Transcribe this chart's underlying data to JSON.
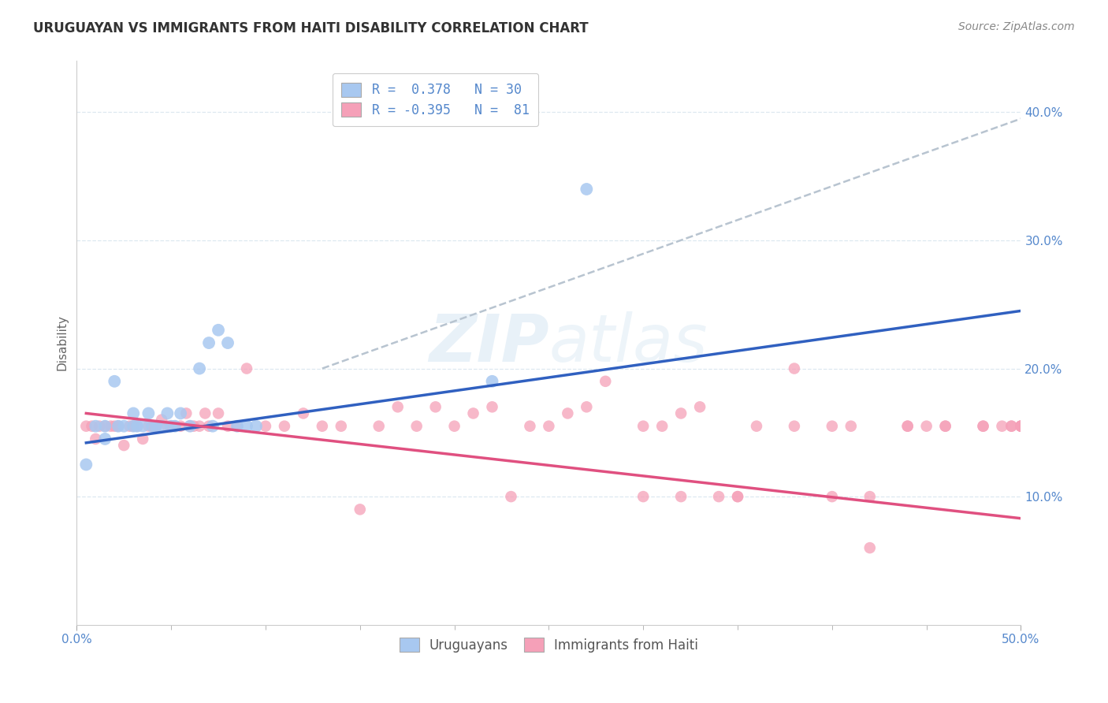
{
  "title": "URUGUAYAN VS IMMIGRANTS FROM HAITI DISABILITY CORRELATION CHART",
  "source": "Source: ZipAtlas.com",
  "ylabel": "Disability",
  "xlim": [
    0.0,
    0.5
  ],
  "ylim": [
    0.0,
    0.44
  ],
  "xtick_major": [
    0.0,
    0.5
  ],
  "xtick_minor": [
    0.05,
    0.1,
    0.15,
    0.2,
    0.25,
    0.3,
    0.35,
    0.4,
    0.45
  ],
  "ytick_vals": [
    0.1,
    0.2,
    0.3,
    0.4
  ],
  "watermark_line1": "ZIP",
  "watermark_line2": "atlas",
  "legend_r1": "R =  0.378   N = 30",
  "legend_r2": "R = -0.395   N =  81",
  "uruguayan_color": "#a8c8f0",
  "haiti_color": "#f5a0b8",
  "blue_line_color": "#3060c0",
  "pink_line_color": "#e05080",
  "dashed_line_color": "#b8c4d0",
  "uruguayan_scatter_x": [
    0.005,
    0.01,
    0.015,
    0.015,
    0.02,
    0.022,
    0.025,
    0.03,
    0.03,
    0.032,
    0.035,
    0.038,
    0.04,
    0.042,
    0.045,
    0.048,
    0.05,
    0.052,
    0.055,
    0.06,
    0.065,
    0.07,
    0.072,
    0.075,
    0.08,
    0.085,
    0.09,
    0.095,
    0.22,
    0.27
  ],
  "uruguayan_scatter_y": [
    0.125,
    0.155,
    0.155,
    0.145,
    0.19,
    0.155,
    0.155,
    0.155,
    0.165,
    0.155,
    0.155,
    0.165,
    0.155,
    0.155,
    0.155,
    0.165,
    0.155,
    0.155,
    0.165,
    0.155,
    0.2,
    0.22,
    0.155,
    0.23,
    0.22,
    0.155,
    0.155,
    0.155,
    0.19,
    0.34
  ],
  "haiti_scatter_x": [
    0.005,
    0.008,
    0.01,
    0.012,
    0.015,
    0.018,
    0.02,
    0.022,
    0.025,
    0.028,
    0.03,
    0.032,
    0.035,
    0.038,
    0.04,
    0.042,
    0.045,
    0.048,
    0.05,
    0.052,
    0.055,
    0.058,
    0.06,
    0.062,
    0.065,
    0.068,
    0.07,
    0.075,
    0.08,
    0.085,
    0.09,
    0.1,
    0.11,
    0.12,
    0.13,
    0.14,
    0.15,
    0.16,
    0.17,
    0.18,
    0.19,
    0.2,
    0.21,
    0.22,
    0.23,
    0.24,
    0.25,
    0.26,
    0.27,
    0.28,
    0.3,
    0.31,
    0.32,
    0.33,
    0.34,
    0.35,
    0.36,
    0.38,
    0.4,
    0.42,
    0.44,
    0.46,
    0.48,
    0.3,
    0.32,
    0.35,
    0.38,
    0.4,
    0.41,
    0.42,
    0.44,
    0.45,
    0.46,
    0.48,
    0.49,
    0.495,
    0.495,
    0.5,
    0.5,
    0.5,
    0.5
  ],
  "haiti_scatter_y": [
    0.155,
    0.155,
    0.145,
    0.155,
    0.155,
    0.155,
    0.155,
    0.155,
    0.14,
    0.155,
    0.155,
    0.155,
    0.145,
    0.155,
    0.155,
    0.155,
    0.16,
    0.155,
    0.155,
    0.155,
    0.155,
    0.165,
    0.155,
    0.155,
    0.155,
    0.165,
    0.155,
    0.165,
    0.155,
    0.155,
    0.2,
    0.155,
    0.155,
    0.165,
    0.155,
    0.155,
    0.09,
    0.155,
    0.17,
    0.155,
    0.17,
    0.155,
    0.165,
    0.17,
    0.1,
    0.155,
    0.155,
    0.165,
    0.17,
    0.19,
    0.155,
    0.155,
    0.165,
    0.17,
    0.1,
    0.1,
    0.155,
    0.155,
    0.1,
    0.1,
    0.155,
    0.155,
    0.155,
    0.1,
    0.1,
    0.1,
    0.2,
    0.155,
    0.155,
    0.06,
    0.155,
    0.155,
    0.155,
    0.155,
    0.155,
    0.155,
    0.155,
    0.155,
    0.155,
    0.155,
    0.155
  ],
  "blue_trendline_x": [
    0.005,
    0.5
  ],
  "blue_trendline_y": [
    0.142,
    0.245
  ],
  "pink_trendline_x": [
    0.005,
    0.5
  ],
  "pink_trendline_y": [
    0.165,
    0.083
  ],
  "dashed_trendline_x": [
    0.13,
    0.5
  ],
  "dashed_trendline_y": [
    0.2,
    0.395
  ],
  "background_color": "#ffffff",
  "grid_color": "#dde8f0",
  "title_fontsize": 12,
  "source_fontsize": 10,
  "tick_color": "#5588cc"
}
